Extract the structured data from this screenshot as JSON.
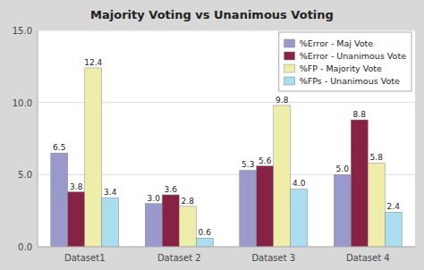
{
  "chart_data": {
    "type": "bar",
    "title": "Majority Voting vs Unanimous Voting",
    "categories": [
      "Dataset1",
      "Dataset 2",
      "Dataset 3",
      "Dataset 4"
    ],
    "series": [
      {
        "name": "%Error - Maj Vote",
        "color": "#9999cc",
        "values": [
          6.5,
          3.0,
          5.3,
          5.0
        ],
        "value_labels": [
          "6.5",
          "3.0",
          "5.3",
          "5.0"
        ]
      },
      {
        "name": "%Error - Unanimous Vote",
        "color": "#882244",
        "values": [
          3.8,
          3.6,
          5.6,
          8.8
        ],
        "value_labels": [
          "3.8",
          "3.6",
          "5.6",
          "8.8"
        ]
      },
      {
        "name": "%FP - Majority Vote",
        "color": "#eeeeaa",
        "values": [
          12.4,
          2.8,
          9.8,
          5.8
        ],
        "value_labels": [
          "12.4",
          "2.8",
          "9.8",
          "5.8"
        ]
      },
      {
        "name": "%FPs - Unanimous Vote",
        "color": "#aaddee",
        "values": [
          3.4,
          0.6,
          4.0,
          2.4
        ],
        "value_labels": [
          "3.4",
          "0.6",
          "4.0",
          "2.4"
        ]
      }
    ],
    "ylim": [
      0,
      15.0
    ],
    "yticks": [
      {
        "value": 0.0,
        "label": "0.0"
      },
      {
        "value": 5.0,
        "label": "5.0"
      },
      {
        "value": 10.0,
        "label": "10.0"
      },
      {
        "value": 15.0,
        "label": "15.0"
      }
    ],
    "grid": true,
    "legend": "upper right",
    "data_labels": true
  }
}
